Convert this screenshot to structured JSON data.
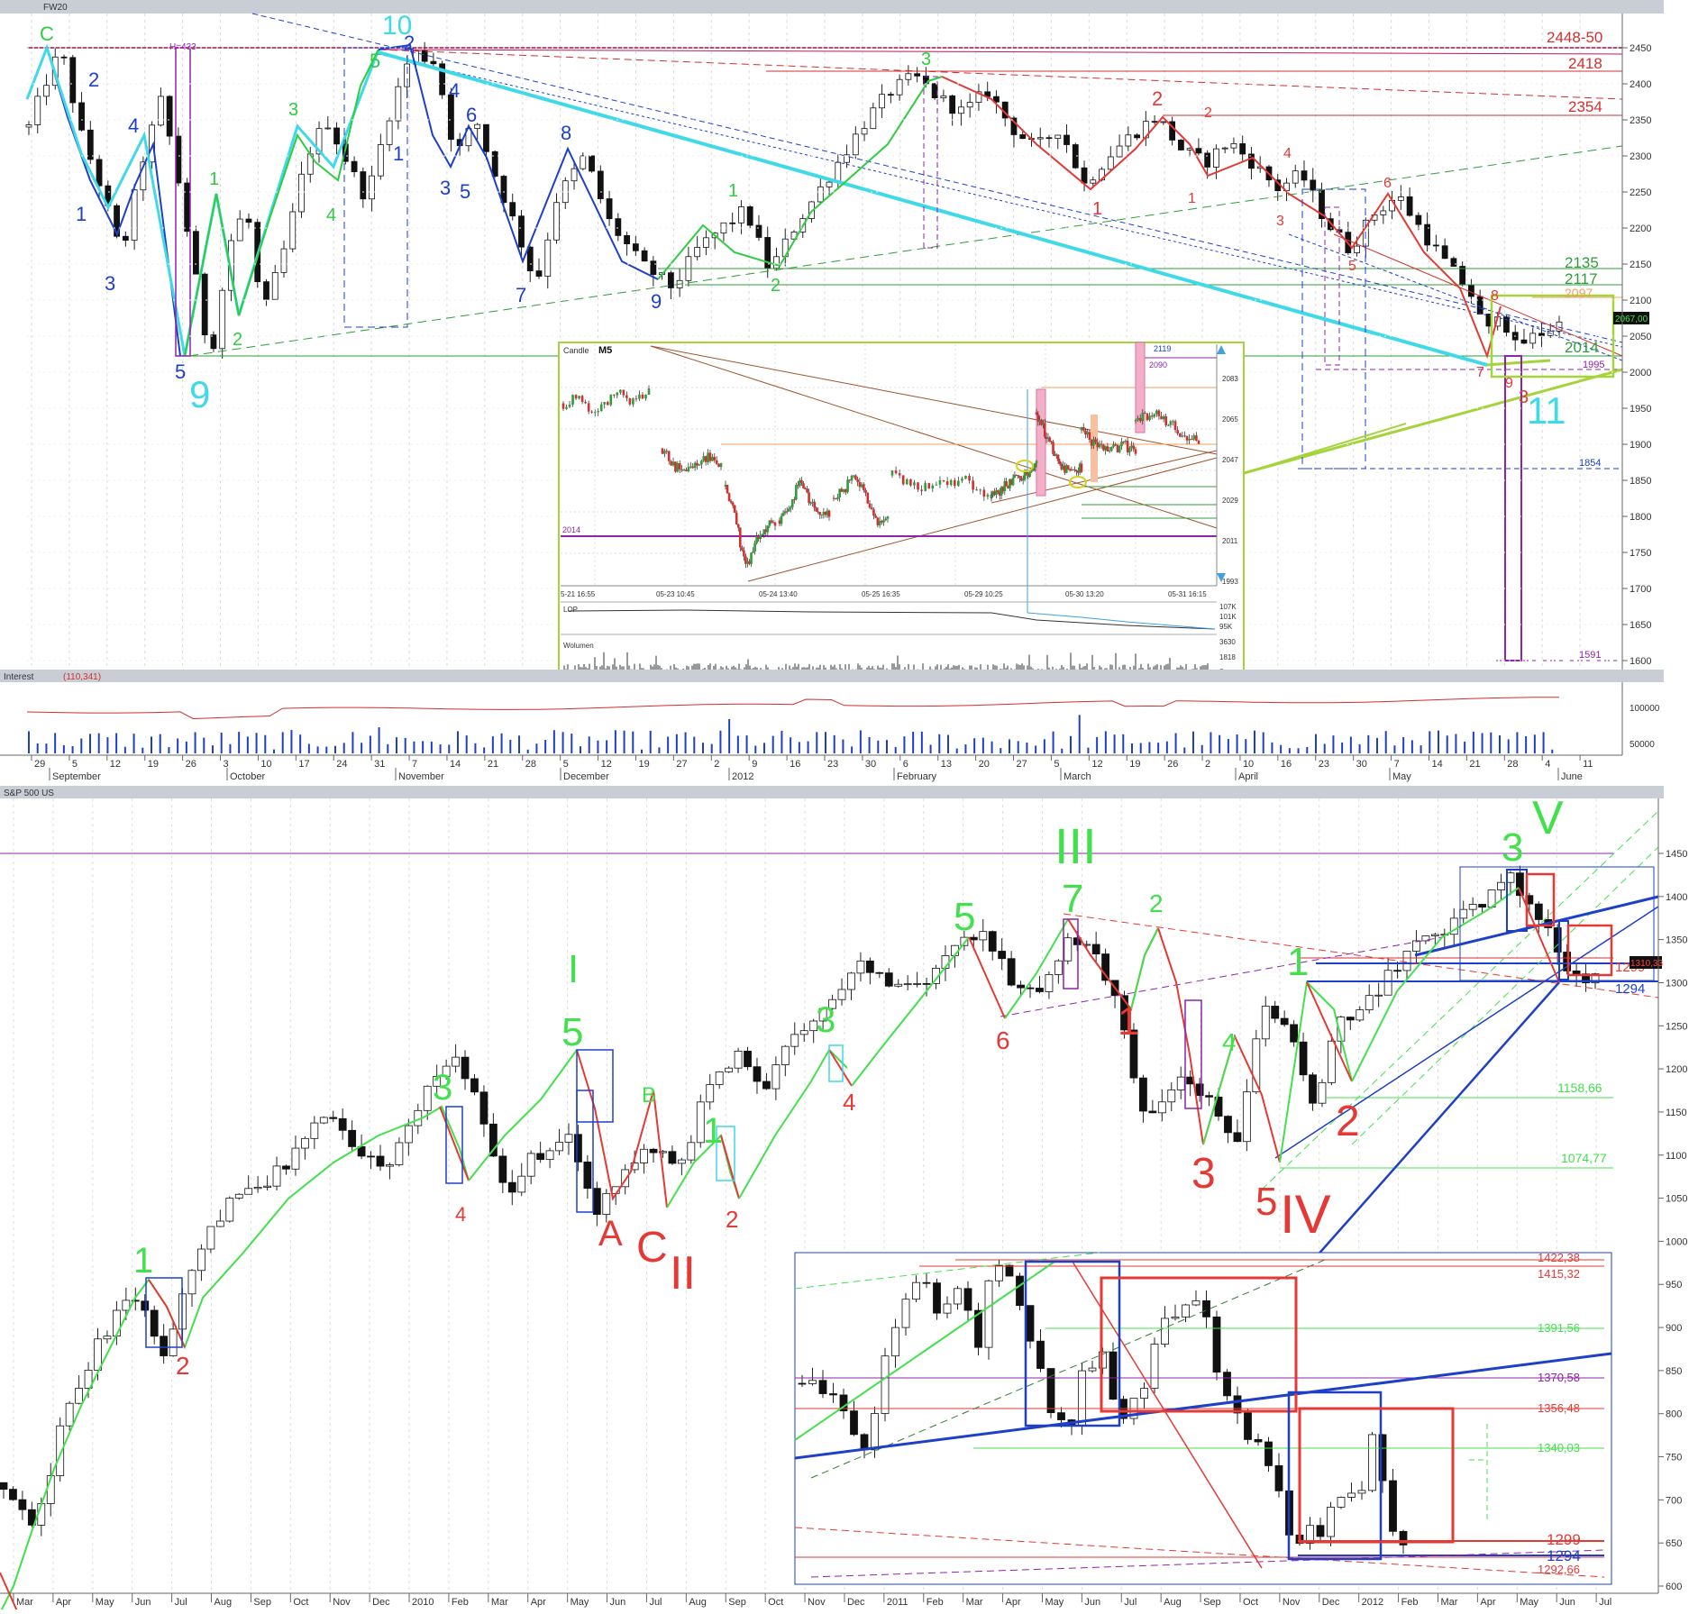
{
  "top_panel": {
    "title": "FW20",
    "indicator_label": "Interest",
    "indicator_value": "(110,341)",
    "indicator_ticks": [
      "100000",
      "50000"
    ],
    "price_tag": "2067,00"
  },
  "inset_m5": {
    "title": "Candle",
    "interval": "M5",
    "y_ticks": [
      "2083",
      "2065",
      "2047",
      "2029",
      "2011",
      "1993"
    ],
    "x_ticks": [
      "5-21 16:55",
      "05-23 10:45",
      "05-24 13:40",
      "05-25 16:35",
      "05-29 10:25",
      "05-30 13:20",
      "05-31 16:15"
    ],
    "levels": {
      "l2119": "2119",
      "l2090": "2090",
      "l2014": "2014"
    },
    "lop_label": "LOP",
    "lop_ticks": [
      "107K",
      "101K",
      "95K"
    ],
    "volume_label": "Wolumen",
    "volume_ticks": [
      "3630",
      "1818",
      "6"
    ]
  },
  "bottom_panel": {
    "title": "S&P 500 US",
    "price_tag": "1310,33"
  },
  "inset_sp": {
    "levels": [
      "1422,38",
      "1415,32",
      "1391,56",
      "1370,58",
      "1356,48",
      "1340,03",
      "1299",
      "1294",
      "1292,66"
    ]
  },
  "chart_data": [
    {
      "type": "line",
      "subtype": "candlestick",
      "title": "FW20",
      "y_ticks": [
        "2450",
        "2400",
        "2350",
        "2300",
        "2250",
        "2200",
        "2150",
        "2100",
        "2050",
        "2000",
        "1950",
        "1900",
        "1850",
        "1800",
        "1750",
        "1700",
        "1650",
        "1600"
      ],
      "ylim": [
        1580,
        2480
      ],
      "x_day_labels": [
        "29",
        "5",
        "12",
        "19",
        "26",
        "3",
        "10",
        "17",
        "24",
        "31",
        "7",
        "14",
        "21",
        "28",
        "5",
        "12",
        "19",
        "27",
        "2",
        "9",
        "16",
        "23",
        "30",
        "6",
        "13",
        "20",
        "27",
        "5",
        "12",
        "19",
        "26",
        "2",
        "10",
        "16",
        "23",
        "30",
        "7",
        "14",
        "21",
        "28",
        "4",
        "11"
      ],
      "x_month_labels": [
        "September",
        "October",
        "November",
        "December",
        "2012",
        "February",
        "March",
        "April",
        "May",
        "June"
      ],
      "level_labels": {
        "l2448": "2448-50",
        "l2418": "2418",
        "l2354": "2354",
        "l2135": "2135",
        "l2117": "2117",
        "l2097": "2097",
        "l2014": "2014",
        "l1995": "1995",
        "l1854": "1854",
        "l1591": "1591",
        "h433": "H=433"
      },
      "close_path": [
        [
          0,
          2340
        ],
        [
          0.02,
          2400
        ],
        [
          0.04,
          2448
        ],
        [
          0.065,
          2330
        ],
        [
          0.09,
          2255
        ],
        [
          0.115,
          2160
        ],
        [
          0.14,
          2290
        ],
        [
          0.165,
          2380
        ],
        [
          0.19,
          2240
        ],
        [
          0.225,
          2014
        ],
        [
          0.25,
          2180
        ],
        [
          0.27,
          2230
        ],
        [
          0.29,
          2075
        ],
        [
          0.32,
          2180
        ],
        [
          0.345,
          2300
        ],
        [
          0.37,
          2350
        ],
        [
          0.4,
          2280
        ],
        [
          0.42,
          2240
        ],
        [
          0.445,
          2350
        ],
        [
          0.475,
          2445
        ],
        [
          0.505,
          2430
        ],
        [
          0.53,
          2300
        ],
        [
          0.555,
          2350
        ],
        [
          0.58,
          2270
        ],
        [
          0.605,
          2200
        ],
        [
          0.63,
          2120
        ],
        [
          0.655,
          2240
        ],
        [
          0.69,
          2300
        ],
        [
          0.72,
          2210
        ],
        [
          0.76,
          2150
        ],
        [
          0.8,
          2117
        ],
        [
          0.83,
          2170
        ],
        [
          0.86,
          2200
        ],
        [
          0.89,
          2225
        ],
        [
          0.92,
          2140
        ],
        [
          0.95,
          2200
        ],
        [
          0.98,
          2250
        ],
        [
          1.01,
          2300
        ],
        [
          1.04,
          2350
        ],
        [
          1.07,
          2390
        ],
        [
          1.1,
          2410
        ],
        [
          1.13,
          2380
        ],
        [
          1.16,
          2360
        ],
        [
          1.19,
          2390
        ],
        [
          1.22,
          2340
        ],
        [
          1.25,
          2310
        ],
        [
          1.28,
          2340
        ],
        [
          1.31,
          2260
        ],
        [
          1.34,
          2300
        ],
        [
          1.37,
          2330
        ],
        [
          1.4,
          2355
        ],
        [
          1.43,
          2310
        ],
        [
          1.46,
          2290
        ],
        [
          1.49,
          2320
        ],
        [
          1.52,
          2290
        ],
        [
          1.55,
          2255
        ],
        [
          1.58,
          2275
        ],
        [
          1.61,
          2210
        ],
        [
          1.64,
          2170
        ],
        [
          1.67,
          2220
        ],
        [
          1.7,
          2245
        ],
        [
          1.73,
          2195
        ],
        [
          1.76,
          2150
        ],
        [
          1.79,
          2110
        ],
        [
          1.81,
          2050
        ],
        [
          1.825,
          2090
        ],
        [
          1.845,
          2035
        ],
        [
          1.87,
          2050
        ],
        [
          1.9,
          2067
        ]
      ]
    },
    {
      "type": "line",
      "subtype": "candlestick",
      "title": "S&P 500 US",
      "y_ticks": [
        "1450",
        "1400",
        "1350",
        "1300",
        "1250",
        "1200",
        "1150",
        "1100",
        "1050",
        "1000",
        "950",
        "900",
        "850",
        "800",
        "750",
        "700",
        "650",
        "600"
      ],
      "ylim": [
        590,
        1480
      ],
      "x_month_labels": [
        "Mar",
        "Apr",
        "May",
        "Jun",
        "Jul",
        "Aug",
        "Sep",
        "Oct",
        "Nov",
        "Dec",
        "2010",
        "Feb",
        "Mar",
        "Apr",
        "May",
        "Jun",
        "Jul",
        "Aug",
        "Sep",
        "Oct",
        "Nov",
        "Dec",
        "2011",
        "Feb",
        "Mar",
        "Apr",
        "May",
        "Jun",
        "Jul",
        "Aug",
        "Sep",
        "Oct",
        "Nov",
        "Dec",
        "2012",
        "Feb",
        "Mar",
        "Apr",
        "May",
        "Jun",
        "Jul"
      ],
      "level_labels": {
        "l1158": "1158,66",
        "l1074": "1074,77",
        "l1299": "1299",
        "l1294": "1294"
      },
      "close_path": [
        [
          0,
          720
        ],
        [
          0.04,
          670
        ],
        [
          0.07,
          800
        ],
        [
          0.11,
          880
        ],
        [
          0.15,
          940
        ],
        [
          0.19,
          870
        ],
        [
          0.22,
          970
        ],
        [
          0.26,
          1040
        ],
        [
          0.3,
          1060
        ],
        [
          0.34,
          1100
        ],
        [
          0.38,
          1150
        ],
        [
          0.41,
          1100
        ],
        [
          0.45,
          1090
        ],
        [
          0.49,
          1170
        ],
        [
          0.53,
          1220
        ],
        [
          0.56,
          1140
        ],
        [
          0.59,
          1050
        ],
        [
          0.62,
          1100
        ],
        [
          0.66,
          1120
        ],
        [
          0.69,
          1030
        ],
        [
          0.72,
          1070
        ],
        [
          0.76,
          1110
        ],
        [
          0.79,
          1080
        ],
        [
          0.82,
          1170
        ],
        [
          0.86,
          1220
        ],
        [
          0.89,
          1180
        ],
        [
          0.92,
          1230
        ],
        [
          0.96,
          1270
        ],
        [
          1.0,
          1320
        ],
        [
          1.03,
          1300
        ],
        [
          1.07,
          1290
        ],
        [
          1.1,
          1330
        ],
        [
          1.14,
          1360
        ],
        [
          1.18,
          1300
        ],
        [
          1.21,
          1280
        ],
        [
          1.24,
          1350
        ],
        [
          1.27,
          1340
        ],
        [
          1.3,
          1280
        ],
        [
          1.33,
          1150
        ],
        [
          1.36,
          1160
        ],
        [
          1.38,
          1200
        ],
        [
          1.41,
          1160
        ],
        [
          1.44,
          1100
        ],
        [
          1.47,
          1280
        ],
        [
          1.5,
          1250
        ],
        [
          1.53,
          1160
        ],
        [
          1.56,
          1250
        ],
        [
          1.59,
          1270
        ],
        [
          1.62,
          1310
        ],
        [
          1.65,
          1340
        ],
        [
          1.68,
          1360
        ],
        [
          1.71,
          1380
        ],
        [
          1.74,
          1400
        ],
        [
          1.76,
          1420
        ],
        [
          1.78,
          1400
        ],
        [
          1.8,
          1370
        ],
        [
          1.82,
          1320
        ],
        [
          1.84,
          1300
        ],
        [
          1.86,
          1310
        ]
      ]
    }
  ],
  "wave_labels": {
    "top": [
      "C",
      "2",
      "1",
      "3",
      "4",
      "5",
      "9",
      "1",
      "2",
      "3",
      "4",
      "5",
      "10",
      "2",
      "1",
      "4",
      "3",
      "6",
      "5",
      "7",
      "8",
      "9",
      "1",
      "2",
      "3",
      "1",
      "2",
      "1",
      "2",
      "3",
      "4",
      "5",
      "6",
      "7",
      "8",
      "9",
      "3",
      "11"
    ],
    "bottom": [
      "1",
      "2",
      "3",
      "4",
      "I",
      "5",
      "A",
      "B",
      "C",
      "II",
      "1",
      "2",
      "3",
      "4",
      "5",
      "6",
      "III",
      "7",
      "1",
      "2",
      "3",
      "4",
      "5",
      "IV",
      "1",
      "2",
      "3",
      "V"
    ]
  }
}
